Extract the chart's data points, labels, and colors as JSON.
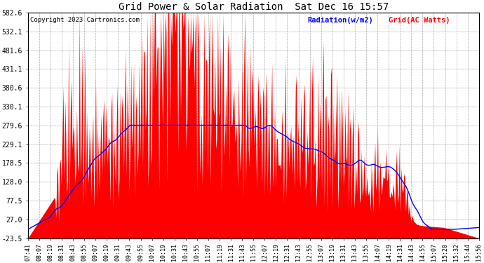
{
  "title": "Grid Power & Solar Radiation  Sat Dec 16 15:57",
  "copyright": "Copyright 2023 Cartronics.com",
  "legend_radiation": "Radiation(w/m2)",
  "legend_grid": "Grid(AC Watts)",
  "radiation_color": "blue",
  "grid_color": "red",
  "background_color": "white",
  "grid_line_color": "#999999",
  "ymin": -23.5,
  "ymax": 582.6,
  "yticks": [
    582.6,
    532.1,
    481.6,
    431.1,
    380.6,
    330.1,
    279.6,
    229.1,
    178.5,
    128.0,
    77.5,
    27.0,
    -23.5
  ],
  "xticklabels": [
    "07:41",
    "08:07",
    "08:19",
    "08:31",
    "08:43",
    "08:55",
    "09:07",
    "09:19",
    "09:31",
    "09:43",
    "09:55",
    "10:07",
    "10:19",
    "10:31",
    "10:43",
    "10:55",
    "11:07",
    "11:19",
    "11:31",
    "11:43",
    "11:55",
    "12:07",
    "12:19",
    "12:31",
    "12:43",
    "12:55",
    "13:07",
    "13:19",
    "13:31",
    "13:43",
    "13:55",
    "14:07",
    "14:19",
    "14:31",
    "14:43",
    "14:55",
    "15:07",
    "15:20",
    "15:32",
    "15:44",
    "15:56"
  ],
  "figwidth": 6.9,
  "figheight": 3.75,
  "dpi": 100
}
